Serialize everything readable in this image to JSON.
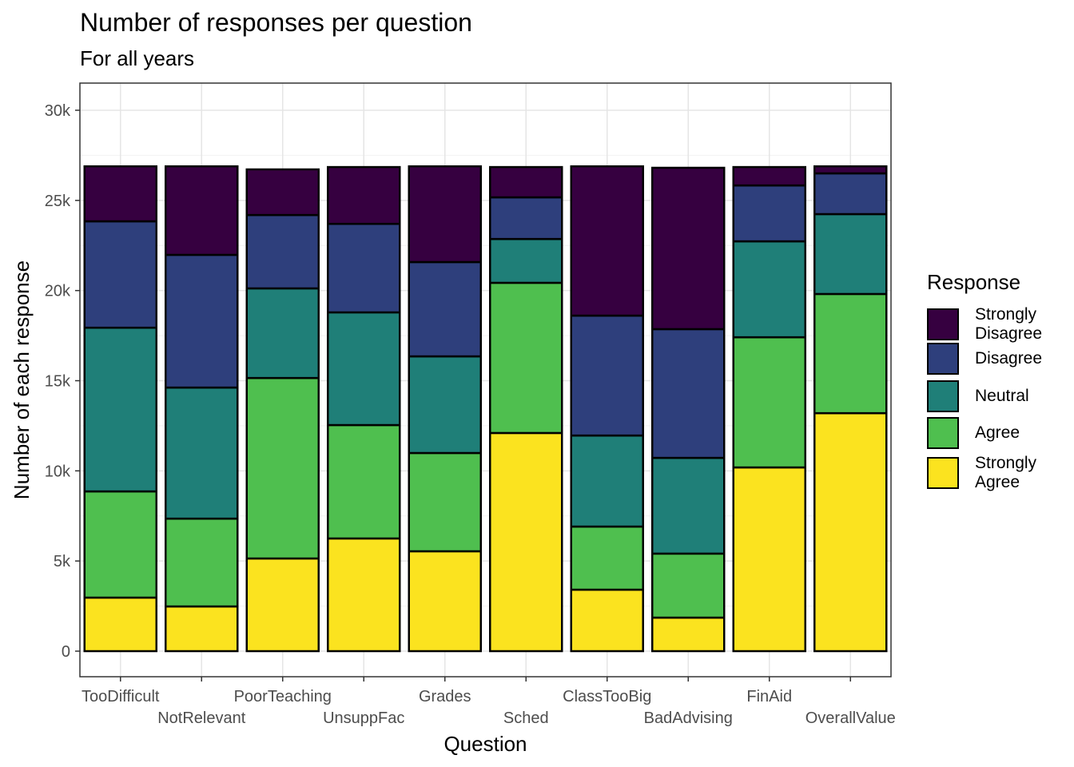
{
  "chart_data": {
    "type": "bar",
    "stacked": true,
    "title": "Number of responses per question",
    "subtitle": "For all years",
    "xlabel": "Question",
    "ylabel": "Number of each response",
    "ylim": [
      -1500,
      31500
    ],
    "yticks": [
      0,
      5000,
      10000,
      15000,
      20000,
      25000,
      30000
    ],
    "ytick_labels": [
      "0",
      "5k",
      "10k",
      "15k",
      "20k",
      "25k",
      "30k"
    ],
    "grid": true,
    "legend_title": "Response",
    "legend_position": "right",
    "categories": [
      "TooDifficult",
      "NotRelevant",
      "PoorTeaching",
      "UnsuppFac",
      "Grades",
      "Sched",
      "ClassTooBig",
      "BadAdvising",
      "FinAid",
      "OverallValue"
    ],
    "series": [
      {
        "name": "Strongly Agree",
        "color": "#fbe31f",
        "values": [
          2970,
          2480,
          5140,
          6250,
          5540,
          12100,
          3410,
          1860,
          10190,
          13200
        ]
      },
      {
        "name": "Agree",
        "color": "#4fbf4f",
        "values": [
          5890,
          4870,
          10010,
          6290,
          5450,
          8330,
          3500,
          3550,
          7220,
          6610
        ]
      },
      {
        "name": "Neutral",
        "color": "#1f7f78",
        "values": [
          9080,
          7270,
          4970,
          6250,
          5360,
          2430,
          5050,
          5310,
          5320,
          4430
        ]
      },
      {
        "name": "Disagree",
        "color": "#2e3f7c",
        "values": [
          5900,
          7360,
          4070,
          4910,
          5230,
          2310,
          6650,
          7140,
          3100,
          2260
        ]
      },
      {
        "name": "Strongly Disagree",
        "color": "#360040",
        "values": [
          3050,
          4910,
          2530,
          3150,
          5310,
          1680,
          8280,
          8950,
          1020,
          390
        ]
      }
    ],
    "legend_order": [
      "Strongly Disagree",
      "Disagree",
      "Neutral",
      "Agree",
      "Strongly Agree"
    ],
    "legend_labels": [
      "Strongly\nDisagree",
      "Disagree",
      "Neutral",
      "Agree",
      "Strongly\nAgree"
    ]
  }
}
